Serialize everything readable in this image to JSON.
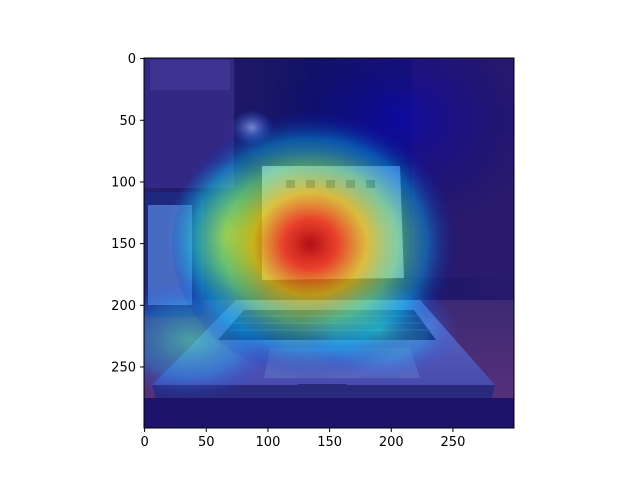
{
  "figure": {
    "image_description": "Photo of an open laptop on a desk overlaid with a jet-colormap attention heatmap"
  },
  "chart_data": {
    "type": "heatmap",
    "title": "",
    "xlabel": "",
    "ylabel": "",
    "xlim": [
      0,
      299
    ],
    "ylim": [
      299,
      0
    ],
    "x_ticks": [
      0,
      50,
      100,
      150,
      200,
      250
    ],
    "y_ticks": [
      0,
      50,
      100,
      150,
      200,
      250
    ],
    "grid": false,
    "colormap": "jet",
    "hotspot_center": [
      145,
      150
    ]
  },
  "colors": {
    "axes_edge": "#000000",
    "jet_low": "#00007f",
    "jet_mid": "#7fff7f",
    "jet_high": "#7f0000"
  }
}
